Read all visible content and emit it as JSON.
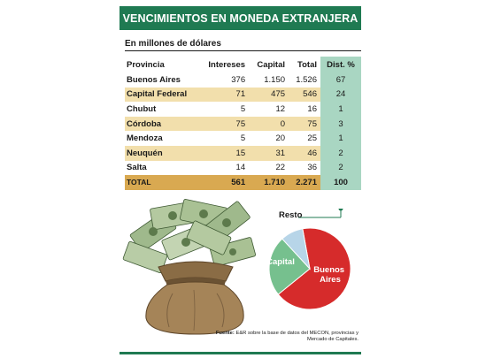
{
  "header": {
    "title": "VENCIMIENTOS EN MONEDA EXTRANJERA",
    "subtitle": "En millones de dólares"
  },
  "table": {
    "columns": [
      "Provincia",
      "Intereses",
      "Capital",
      "Total",
      "Dist. %"
    ],
    "rows": [
      [
        "Buenos Aires",
        "376",
        "1.150",
        "1.526",
        "67"
      ],
      [
        "Capital Federal",
        "71",
        "475",
        "546",
        "24"
      ],
      [
        "Chubut",
        "5",
        "12",
        "16",
        "1"
      ],
      [
        "Córdoba",
        "75",
        "0",
        "75",
        "3"
      ],
      [
        "Mendoza",
        "5",
        "20",
        "25",
        "1"
      ],
      [
        "Neuquén",
        "15",
        "31",
        "46",
        "2"
      ],
      [
        "Salta",
        "14",
        "22",
        "36",
        "2"
      ]
    ],
    "total": [
      "TOTAL",
      "561",
      "1.710",
      "2.271",
      "100"
    ]
  },
  "chart_data": {
    "type": "pie",
    "title": "",
    "slices": [
      {
        "label": "Buenos Aires",
        "value": 67,
        "color": "#d62b2b"
      },
      {
        "label": "Capital",
        "value": 24,
        "color": "#76c08e"
      },
      {
        "label": "Resto",
        "value": 9,
        "color": "#b7d5e8"
      }
    ]
  },
  "source": {
    "label": "Fuente:",
    "text": "E&R sobre la base de datos del MECON, provincias y Mercado de Capitales."
  },
  "colors": {
    "brand_green": "#1f7a52",
    "row_alt": "#f2dfac",
    "total_row": "#d9a951",
    "dist_column": "#a9d6c2"
  },
  "illustration": {
    "icon": "money-bag-icon"
  }
}
